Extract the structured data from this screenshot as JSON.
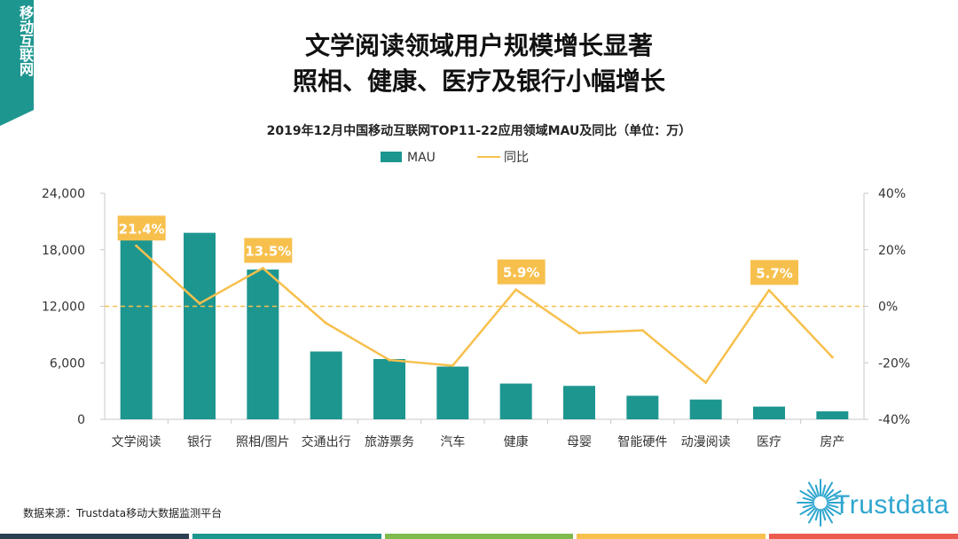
{
  "corner_tag": "移动互联网",
  "headline": {
    "line1": "文学阅读领域用户规模增长显著",
    "line2": "照相、健康、医疗及银行小幅增长"
  },
  "chart_data": {
    "type": "bar+line",
    "title": "2019年12月中国移动互联网TOP11-22应用领域MAU及同比（单位：万）",
    "categories": [
      "文学阅读",
      "银行",
      "照相/图片",
      "交通出行",
      "旅游票务",
      "汽车",
      "健康",
      "母婴",
      "智能硬件",
      "动漫阅读",
      "医疗",
      "房产"
    ],
    "series": [
      {
        "name": "MAU",
        "kind": "bar",
        "axis": "left",
        "color": "#1e9690",
        "values": [
          20100,
          19800,
          15900,
          7200,
          6400,
          5600,
          3800,
          3550,
          2500,
          2100,
          1350,
          850
        ]
      },
      {
        "name": "同比",
        "kind": "line",
        "axis": "right",
        "color": "#f7c04d",
        "values": [
          21.4,
          1.0,
          13.5,
          -6.0,
          -19.0,
          -21.0,
          5.9,
          -9.5,
          -8.5,
          -27.0,
          5.7,
          -18.0
        ]
      }
    ],
    "left_axis": {
      "min": 0,
      "max": 24000,
      "ticks": [
        "0",
        "6,000",
        "12,000",
        "18,000",
        "24,000"
      ]
    },
    "right_axis": {
      "min": -40,
      "max": 40,
      "ticks": [
        "-40%",
        "-20%",
        "0%",
        "20%",
        "40%"
      ]
    },
    "reference_line": {
      "value": 0,
      "axis": "right",
      "style": "dashed"
    },
    "callouts": [
      {
        "index": 0,
        "label": "21.4%"
      },
      {
        "index": 2,
        "label": "13.5%"
      },
      {
        "index": 6,
        "label": "5.9%"
      },
      {
        "index": 10,
        "label": "5.7%"
      }
    ],
    "legend_position": "top-center"
  },
  "source_text": "数据来源：Trustdata移动大数据监测平台",
  "brand": "Trustdata",
  "colors": {
    "bar": "#1e9690",
    "line": "#f7c04d",
    "callout_bg": "#f7c04d",
    "bottom_bar": [
      "#2b3f50",
      "#1e9690",
      "#7fba4c",
      "#f7c04d",
      "#ec5b4f"
    ]
  }
}
